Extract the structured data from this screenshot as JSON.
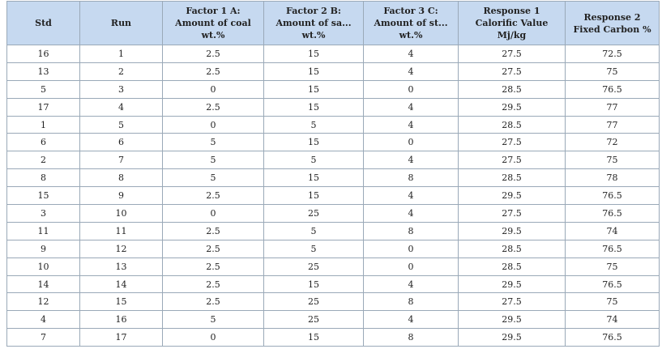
{
  "table": {
    "headers": [
      "Std",
      "Run",
      "Factor 1 A: Amount of coal wt.%",
      "Factor 2 B: Amount of sa... wt.%",
      "Factor 3 C: Amount of st... wt.%",
      "Response 1 Calorific Value Mj/kg",
      "Response 2 Fixed Carbon %"
    ],
    "rows": [
      [
        "16",
        "1",
        "2.5",
        "15",
        "4",
        "27.5",
        "72.5"
      ],
      [
        "13",
        "2",
        "2.5",
        "15",
        "4",
        "27.5",
        "75"
      ],
      [
        "5",
        "3",
        "0",
        "15",
        "0",
        "28.5",
        "76.5"
      ],
      [
        "17",
        "4",
        "2.5",
        "15",
        "4",
        "29.5",
        "77"
      ],
      [
        "1",
        "5",
        "0",
        "5",
        "4",
        "28.5",
        "77"
      ],
      [
        "6",
        "6",
        "5",
        "15",
        "0",
        "27.5",
        "72"
      ],
      [
        "2",
        "7",
        "5",
        "5",
        "4",
        "27.5",
        "75"
      ],
      [
        "8",
        "8",
        "5",
        "15",
        "8",
        "28.5",
        "78"
      ],
      [
        "15",
        "9",
        "2.5",
        "15",
        "4",
        "29.5",
        "76.5"
      ],
      [
        "3",
        "10",
        "0",
        "25",
        "4",
        "27.5",
        "76.5"
      ],
      [
        "11",
        "11",
        "2.5",
        "5",
        "8",
        "29.5",
        "74"
      ],
      [
        "9",
        "12",
        "2.5",
        "5",
        "0",
        "28.5",
        "76.5"
      ],
      [
        "10",
        "13",
        "2.5",
        "25",
        "0",
        "28.5",
        "75"
      ],
      [
        "14",
        "14",
        "2.5",
        "15",
        "4",
        "29.5",
        "76.5"
      ],
      [
        "12",
        "15",
        "2.5",
        "25",
        "8",
        "27.5",
        "75"
      ],
      [
        "4",
        "16",
        "5",
        "25",
        "4",
        "29.5",
        "74"
      ],
      [
        "7",
        "17",
        "0",
        "15",
        "8",
        "29.5",
        "76.5"
      ]
    ]
  }
}
